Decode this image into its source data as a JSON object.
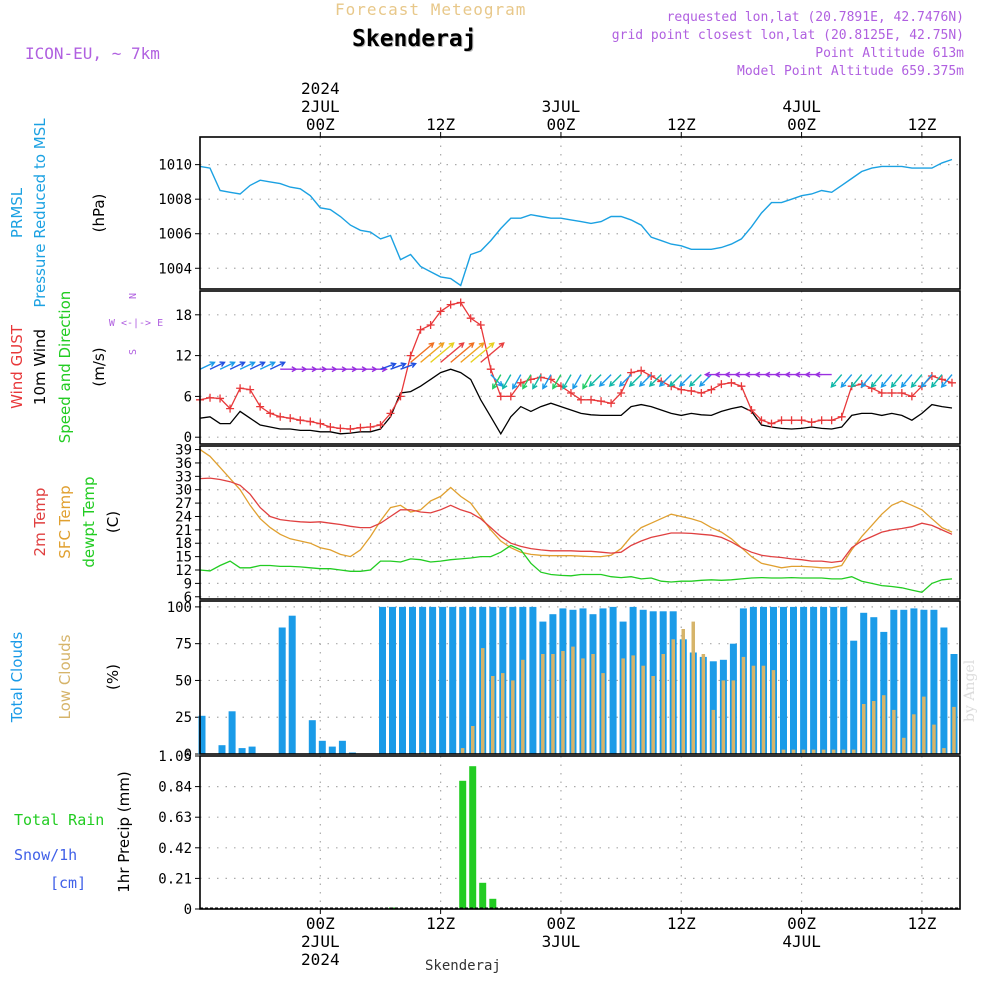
{
  "header": {
    "subtitle": "Forecast Meteogram",
    "location": "Skenderaj",
    "model": "ICON-EU, ~ 7km",
    "requested": "requested lon,lat (20.7891E, 42.7476N)",
    "grid_point": "grid point closest lon,lat (20.8125E, 42.75N)",
    "point_altitude": "Point Altitude 613m",
    "model_altitude": "Model Point Altitude 659.375m"
  },
  "credit": "by Angel",
  "footer_location": "Skenderaj",
  "colors": {
    "pressure": "#1ba1e2",
    "gust": "#e8383a",
    "wind": "#000000",
    "temp2m": "#e04040",
    "sfc_temp": "#e0a030",
    "dewpoint": "#22cc22",
    "total_clouds": "#1a9be8",
    "low_clouds": "#d6b46a",
    "rain": "#22cc22",
    "snow_label": "#4060e8",
    "model_text": "#b060e0"
  },
  "time_axis": {
    "top_ticks": [
      {
        "t": 12,
        "lines": [
          "2024",
          "2JUL",
          "00Z"
        ]
      },
      {
        "t": 24,
        "lines": [
          "12Z"
        ]
      },
      {
        "t": 36,
        "lines": [
          "3JUL",
          "00Z"
        ]
      },
      {
        "t": 48,
        "lines": [
          "12Z"
        ]
      },
      {
        "t": 60,
        "lines": [
          "4JUL",
          "00Z"
        ]
      },
      {
        "t": 72,
        "lines": [
          "12Z"
        ]
      }
    ],
    "bottom_ticks": [
      {
        "t": 12,
        "lines": [
          "00Z",
          "2JUL",
          "2024"
        ]
      },
      {
        "t": 24,
        "lines": [
          "12Z"
        ]
      },
      {
        "t": 36,
        "lines": [
          "00Z",
          "3JUL"
        ]
      },
      {
        "t": 48,
        "lines": [
          "12Z"
        ]
      },
      {
        "t": 60,
        "lines": [
          "00Z",
          "4JUL"
        ]
      },
      {
        "t": 72,
        "lines": [
          "12Z"
        ]
      }
    ]
  },
  "chart_data": [
    {
      "type": "line",
      "panel": "pressure",
      "ylabel_lines": [
        "PRMSL",
        "Pressure Reduced to MSL",
        "(hPa)"
      ],
      "yticks": [
        1004,
        1006,
        1008,
        1010
      ],
      "ylim": [
        1002.8,
        1011.6
      ],
      "grid": true,
      "x": [
        0,
        1,
        2,
        3,
        4,
        5,
        6,
        7,
        8,
        9,
        10,
        11,
        12,
        13,
        14,
        15,
        16,
        17,
        18,
        19,
        20,
        21,
        22,
        23,
        24,
        25,
        26,
        27,
        28,
        29,
        30,
        31,
        32,
        33,
        34,
        35,
        36,
        37,
        38,
        39,
        40,
        41,
        42,
        43,
        44,
        45,
        46,
        47,
        48,
        49,
        50,
        51,
        52,
        53,
        54,
        55,
        56,
        57,
        58,
        59,
        60,
        61,
        62,
        63,
        64,
        65,
        66,
        67,
        68,
        69,
        70,
        71,
        72,
        73,
        74,
        75
      ],
      "series": [
        {
          "name": "PRMSL",
          "values": [
            1009.9,
            1009.8,
            1008.5,
            1008.4,
            1008.3,
            1008.8,
            1009.1,
            1009.0,
            1008.9,
            1008.7,
            1008.6,
            1008.2,
            1007.5,
            1007.4,
            1007.0,
            1006.5,
            1006.2,
            1006.1,
            1005.7,
            1005.9,
            1004.5,
            1004.8,
            1004.1,
            1003.8,
            1003.5,
            1003.4,
            1003.0,
            1004.8,
            1005.0,
            1005.6,
            1006.3,
            1006.9,
            1006.9,
            1007.1,
            1007.0,
            1006.9,
            1006.9,
            1006.8,
            1006.7,
            1006.6,
            1006.7,
            1007.0,
            1007.0,
            1006.8,
            1006.5,
            1005.8,
            1005.6,
            1005.4,
            1005.3,
            1005.1,
            1005.1,
            1005.1,
            1005.2,
            1005.4,
            1005.7,
            1006.4,
            1007.2,
            1007.8,
            1007.8,
            1008.0,
            1008.2,
            1008.3,
            1008.5,
            1008.4,
            1008.8,
            1009.2,
            1009.6,
            1009.8,
            1009.9,
            1009.9,
            1009.9,
            1009.8,
            1009.8,
            1009.8,
            1010.1,
            1010.3
          ]
        }
      ]
    },
    {
      "type": "line",
      "panel": "wind",
      "ylabel_lines": [
        "Wind GUST",
        "10m Wind",
        "Speed and Direction",
        "(m/s)"
      ],
      "compass": [
        "N",
        "W <-|-> E",
        "S"
      ],
      "yticks": [
        0,
        6,
        12,
        18
      ],
      "ylim": [
        -1,
        21.5
      ],
      "grid": true,
      "x": [
        0,
        1,
        2,
        3,
        4,
        5,
        6,
        7,
        8,
        9,
        10,
        11,
        12,
        13,
        14,
        15,
        16,
        17,
        18,
        19,
        20,
        21,
        22,
        23,
        24,
        25,
        26,
        27,
        28,
        29,
        30,
        31,
        32,
        33,
        34,
        35,
        36,
        37,
        38,
        39,
        40,
        41,
        42,
        43,
        44,
        45,
        46,
        47,
        48,
        49,
        50,
        51,
        52,
        53,
        54,
        55,
        56,
        57,
        58,
        59,
        60,
        61,
        62,
        63,
        64,
        65,
        66,
        67,
        68,
        69,
        70,
        71,
        72,
        73,
        74,
        75
      ],
      "series": [
        {
          "name": "Wind GUST",
          "values": [
            5.5,
            5.8,
            5.7,
            4.2,
            7.2,
            7.0,
            4.5,
            3.5,
            3.0,
            2.8,
            2.5,
            2.3,
            2.0,
            1.5,
            1.3,
            1.2,
            1.4,
            1.5,
            1.8,
            3.5,
            6.0,
            12.0,
            15.8,
            16.5,
            18.5,
            19.5,
            19.8,
            17.5,
            16.5,
            10.0,
            6.0,
            6.0,
            8.0,
            8.5,
            8.8,
            8.5,
            7.5,
            6.5,
            5.5,
            5.5,
            5.3,
            5.0,
            6.5,
            9.5,
            9.8,
            9.0,
            8.2,
            7.5,
            7.0,
            6.8,
            6.5,
            7.0,
            7.8,
            8.0,
            7.5,
            4.0,
            2.5,
            2.0,
            2.5,
            2.5,
            2.5,
            2.2,
            2.5,
            2.5,
            3.0,
            7.5,
            7.8,
            7.2,
            6.5,
            6.5,
            6.5,
            6.0,
            7.5,
            9.0,
            8.5,
            8.0
          ]
        },
        {
          "name": "10m Wind",
          "values": [
            2.8,
            3.0,
            2.0,
            2.0,
            3.8,
            2.8,
            1.8,
            1.5,
            1.2,
            1.2,
            1.0,
            1.0,
            0.8,
            0.8,
            0.5,
            0.6,
            0.8,
            0.8,
            1.2,
            3.0,
            6.5,
            6.7,
            7.5,
            8.5,
            9.5,
            10.0,
            9.5,
            8.5,
            5.5,
            3.0,
            0.5,
            3.0,
            4.5,
            3.8,
            4.5,
            5.0,
            4.5,
            4.0,
            3.5,
            3.3,
            3.2,
            3.2,
            3.2,
            4.5,
            4.8,
            4.5,
            4.0,
            3.5,
            3.2,
            3.5,
            3.3,
            3.2,
            3.8,
            4.2,
            4.5,
            3.8,
            1.8,
            1.5,
            1.3,
            1.2,
            1.3,
            1.5,
            1.3,
            1.2,
            1.5,
            3.2,
            3.5,
            3.5,
            3.2,
            3.5,
            3.2,
            2.5,
            3.5,
            4.8,
            4.5,
            4.3
          ]
        }
      ]
    },
    {
      "type": "line",
      "panel": "temperature",
      "ylabel_lines": [
        "2m Temp",
        "SFC Temp",
        "dewpt Temp",
        "(C)"
      ],
      "yticks": [
        6,
        9,
        12,
        15,
        18,
        21,
        24,
        27,
        30,
        33,
        36,
        39
      ],
      "ylim": [
        5.5,
        39.8
      ],
      "grid": true,
      "x": [
        0,
        1,
        2,
        3,
        4,
        5,
        6,
        7,
        8,
        9,
        10,
        11,
        12,
        13,
        14,
        15,
        16,
        17,
        18,
        19,
        20,
        21,
        22,
        23,
        24,
        25,
        26,
        27,
        28,
        29,
        30,
        31,
        32,
        33,
        34,
        35,
        36,
        37,
        38,
        39,
        40,
        41,
        42,
        43,
        44,
        45,
        46,
        47,
        48,
        49,
        50,
        51,
        52,
        53,
        54,
        55,
        56,
        57,
        58,
        59,
        60,
        61,
        62,
        63,
        64,
        65,
        66,
        67,
        68,
        69,
        70,
        71,
        72,
        73,
        74,
        75
      ],
      "series": [
        {
          "name": "2m Temp",
          "values": [
            32.5,
            32.6,
            32.3,
            31.8,
            31.0,
            29.0,
            26.0,
            24.0,
            23.3,
            23.0,
            22.8,
            22.7,
            22.8,
            22.5,
            22.2,
            21.8,
            21.5,
            21.5,
            22.5,
            24.0,
            25.5,
            25.5,
            25.0,
            24.8,
            25.5,
            26.5,
            25.5,
            24.8,
            23.5,
            21.5,
            19.5,
            18.0,
            17.3,
            16.8,
            16.5,
            16.3,
            16.3,
            16.3,
            16.2,
            16.2,
            16.0,
            15.8,
            16.0,
            17.5,
            18.5,
            19.3,
            19.8,
            20.3,
            20.3,
            20.2,
            20.0,
            19.8,
            19.3,
            18.3,
            17.0,
            16.0,
            15.3,
            15.0,
            14.8,
            14.5,
            14.3,
            14.0,
            14.0,
            13.7,
            14.0,
            17.0,
            18.5,
            19.5,
            20.5,
            21.0,
            21.3,
            21.7,
            22.5,
            22.0,
            21.0,
            20.0
          ]
        },
        {
          "name": "SFC Temp",
          "values": [
            39.0,
            37.5,
            35.0,
            32.5,
            30.0,
            26.5,
            23.5,
            21.5,
            20.0,
            19.0,
            18.5,
            18.0,
            17.0,
            16.5,
            15.5,
            15.0,
            16.5,
            19.5,
            23.0,
            26.0,
            26.5,
            25.0,
            25.5,
            27.5,
            28.5,
            30.5,
            28.5,
            27.0,
            24.0,
            21.0,
            18.5,
            17.0,
            16.0,
            15.5,
            15.3,
            15.2,
            15.2,
            15.2,
            15.1,
            15.0,
            15.0,
            15.3,
            16.8,
            19.5,
            21.5,
            22.5,
            23.5,
            24.5,
            24.0,
            23.5,
            22.8,
            21.5,
            20.5,
            19.0,
            17.0,
            15.0,
            13.5,
            13.0,
            12.5,
            12.8,
            12.8,
            12.7,
            12.5,
            12.5,
            13.0,
            16.5,
            19.5,
            22.0,
            24.5,
            26.5,
            27.5,
            26.5,
            25.5,
            23.5,
            21.5,
            20.5
          ]
        },
        {
          "name": "dewpt Temp",
          "values": [
            12.0,
            11.8,
            13.0,
            14.0,
            12.5,
            12.5,
            13.0,
            13.0,
            12.8,
            12.8,
            12.7,
            12.5,
            12.3,
            12.3,
            12.0,
            11.7,
            11.7,
            12.0,
            14.0,
            14.0,
            13.8,
            14.5,
            14.3,
            13.8,
            14.0,
            14.3,
            14.5,
            14.7,
            15.0,
            15.0,
            16.0,
            17.5,
            16.5,
            13.5,
            11.5,
            11.0,
            10.8,
            10.7,
            11.0,
            11.0,
            11.0,
            10.5,
            10.3,
            10.5,
            10.0,
            10.2,
            9.5,
            9.3,
            9.5,
            9.5,
            9.7,
            9.8,
            9.7,
            9.8,
            10.0,
            10.2,
            10.3,
            10.2,
            10.2,
            10.3,
            10.2,
            10.2,
            10.2,
            10.0,
            10.0,
            10.5,
            9.5,
            9.0,
            8.5,
            8.3,
            8.0,
            7.5,
            7.0,
            9.0,
            9.8,
            10.0
          ]
        }
      ]
    },
    {
      "type": "bar",
      "panel": "clouds",
      "ylabel_lines": [
        "Total Clouds",
        "Low Clouds",
        "(%)"
      ],
      "yticks": [
        0,
        25,
        50,
        75,
        100
      ],
      "ylim": [
        0,
        104
      ],
      "grid": true,
      "x": [
        0,
        1,
        2,
        3,
        4,
        5,
        6,
        7,
        8,
        9,
        10,
        11,
        12,
        13,
        14,
        15,
        16,
        17,
        18,
        19,
        20,
        21,
        22,
        23,
        24,
        25,
        26,
        27,
        28,
        29,
        30,
        31,
        32,
        33,
        34,
        35,
        36,
        37,
        38,
        39,
        40,
        41,
        42,
        43,
        44,
        45,
        46,
        47,
        48,
        49,
        50,
        51,
        52,
        53,
        54,
        55,
        56,
        57,
        58,
        59,
        60,
        61,
        62,
        63,
        64,
        65,
        66,
        67,
        68,
        69,
        70,
        71,
        72,
        73,
        74,
        75
      ],
      "series": [
        {
          "name": "Total Clouds",
          "values": [
            26,
            0,
            6,
            29,
            4,
            5,
            0,
            0,
            86,
            94,
            0,
            23,
            9,
            5,
            9,
            1,
            0,
            0,
            100,
            100,
            100,
            100,
            100,
            100,
            100,
            100,
            100,
            100,
            100,
            100,
            100,
            100,
            100,
            100,
            90,
            95,
            99,
            98,
            99,
            95,
            99,
            100,
            90,
            100,
            98,
            97,
            97,
            97,
            78,
            69,
            66,
            63,
            64,
            75,
            99,
            100,
            100,
            100,
            100,
            100,
            100,
            100,
            100,
            100,
            100,
            77,
            96,
            93,
            83,
            98,
            98,
            99,
            98,
            98,
            86,
            68
          ]
        },
        {
          "name": "Low Clouds",
          "values": [
            0,
            0,
            0,
            0,
            0,
            0,
            0,
            0,
            0,
            0,
            0,
            0,
            0,
            0,
            0,
            0,
            0,
            0,
            0,
            0,
            0,
            0,
            1,
            0,
            0,
            0,
            4,
            19,
            72,
            53,
            55,
            50,
            64,
            0,
            68,
            68,
            70,
            73,
            65,
            68,
            55,
            0,
            65,
            67,
            60,
            53,
            68,
            78,
            85,
            90,
            68,
            30,
            50,
            50,
            66,
            60,
            60,
            57,
            3,
            3,
            3,
            3,
            3,
            3,
            3,
            3,
            34,
            36,
            40,
            30,
            11,
            27,
            39,
            20,
            4,
            32
          ]
        }
      ]
    },
    {
      "type": "bar",
      "panel": "precip",
      "ylabel_lines": [
        "1hr Precip (mm)"
      ],
      "side_labels": [
        "Total  Rain",
        "Snow/1h",
        "[cm]"
      ],
      "yticks": [
        "0",
        "0.21",
        "0.42",
        "0.63",
        "0.84",
        "1.05"
      ],
      "ylim": [
        0,
        1.05
      ],
      "grid": true,
      "x": [
        19,
        26,
        27,
        28,
        29
      ],
      "series": [
        {
          "name": "Total Rain",
          "values": [
            0.01,
            0.88,
            0.98,
            0.18,
            0.07
          ]
        }
      ]
    }
  ]
}
